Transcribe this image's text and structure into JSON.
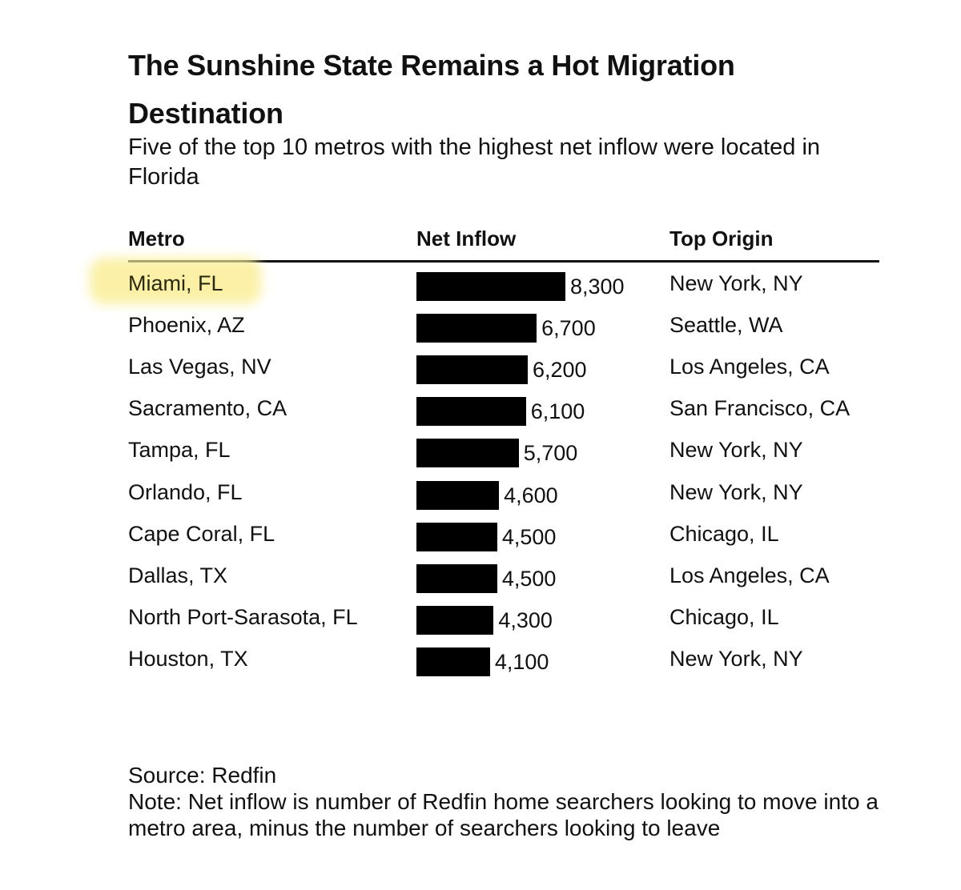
{
  "title": "The Sunshine State Remains a Hot Migration Destination",
  "subtitle": "Five of the top 10 metros with the highest net inflow were located in Florida",
  "columns": {
    "metro": "Metro",
    "net_inflow": "Net Inflow",
    "top_origin": "Top Origin"
  },
  "highlight_color": "#fbef9d",
  "bar_color": "#000000",
  "chart_data": {
    "type": "bar",
    "orientation": "horizontal",
    "categories": [
      "Miami, FL",
      "Phoenix, AZ",
      "Las Vegas, NV",
      "Sacramento, CA",
      "Tampa, FL",
      "Orlando, FL",
      "Cape Coral, FL",
      "Dallas, TX",
      "North Port-Sarasota, FL",
      "Houston, TX"
    ],
    "values": [
      8300,
      6700,
      6200,
      6100,
      5700,
      4600,
      4500,
      4500,
      4300,
      4100
    ],
    "value_labels": [
      "8,300",
      "6,700",
      "6,200",
      "6,100",
      "5,700",
      "4,600",
      "4,500",
      "4,500",
      "4,300",
      "4,100"
    ],
    "top_origin": [
      "New York, NY",
      "Seattle, WA",
      "Los Angeles, CA",
      "San Francisco, CA",
      "New York, NY",
      "New York, NY",
      "Chicago, IL",
      "Los Angeles, CA",
      "Chicago, IL",
      "New York, NY"
    ],
    "highlighted_category": "Miami, FL",
    "title": "The Sunshine State Remains a Hot Migration Destination",
    "xlabel": "Net Inflow",
    "ylabel": "Metro",
    "grid": false,
    "legend": "none"
  },
  "footer": {
    "source": "Source: Redfin",
    "note": "Note: Net inflow is number of Redfin home searchers looking to move into a metro area, minus the number of searchers looking to leave"
  }
}
